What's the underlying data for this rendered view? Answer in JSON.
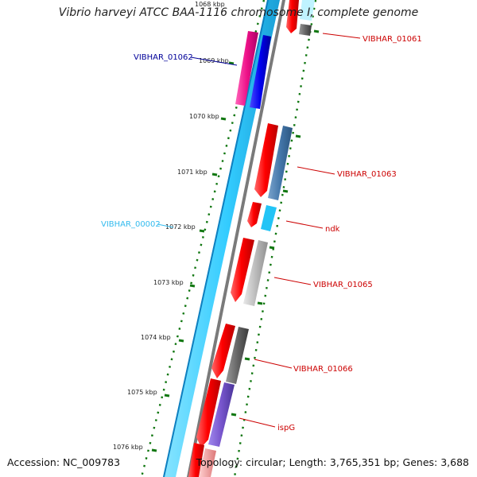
{
  "title": "Vibrio harveyi ATCC BAA-1116 chromosome I, complete genome",
  "footer": {
    "accession": "Accession: NC_009783",
    "summary": "Topology: circular; Length: 3,765,351 bp; Genes: 3,688"
  },
  "ticks": [
    {
      "label": "1068 kbp"
    },
    {
      "label": "1069 kbp"
    },
    {
      "label": "1070 kbp"
    },
    {
      "label": "1071 kbp"
    },
    {
      "label": "1072 kbp"
    },
    {
      "label": "1073 kbp"
    },
    {
      "label": "1074 kbp"
    },
    {
      "label": "1075 kbp"
    },
    {
      "label": "1076 kbp"
    }
  ],
  "gene_labels": [
    {
      "name": "VIBHAR_01061",
      "color": "#cc0000"
    },
    {
      "name": "VIBHAR_01062",
      "color": "#000099"
    },
    {
      "name": "VIBHAR_01063",
      "color": "#cc0000"
    },
    {
      "name": "VIBHAR_00002",
      "color": "#33bbee"
    },
    {
      "name": "ndk",
      "color": "#cc0000"
    },
    {
      "name": "VIBHAR_01065",
      "color": "#cc0000"
    },
    {
      "name": "VIBHAR_01066",
      "color": "#cc0000"
    },
    {
      "name": "ispG",
      "color": "#cc0000"
    }
  ],
  "colors": {
    "backbone_light": "#33ccff",
    "backbone_dark": "#1188cc",
    "cds": "#ff0000",
    "magenta_feature": "#ee1188",
    "blue_feature": "#0000ee",
    "steelblue_feature": "#4477aa",
    "gray_feature": "#666666",
    "lightgray_feature": "#bbbbbb",
    "purple_feature": "#7755cc",
    "tick_green": "#117711"
  }
}
